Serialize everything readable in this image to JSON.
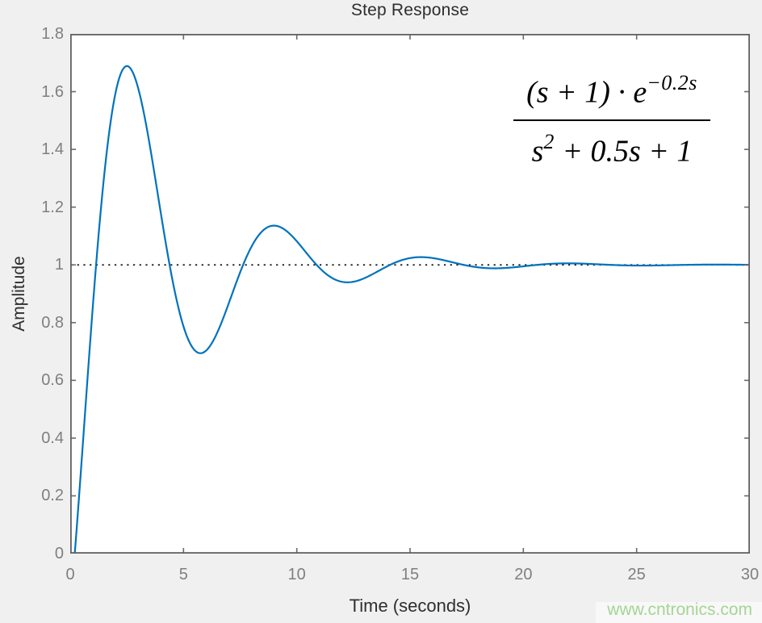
{
  "title": "Step Response",
  "watermark_text": "www.cntronics.com",
  "formula": {
    "num_main": "(s + 1) · e",
    "num_sup": "−0.2s",
    "den_base": "s",
    "den_sup": "2",
    "den_rest": " + 0.5s + 1"
  },
  "colors": {
    "curve": "#0072BD",
    "figure_background": "#f0f0f0",
    "plot_background": "#ffffff",
    "axis_box": "#616161",
    "tick_mark": "#6a6a6a",
    "tick_label": "#7f7f7f",
    "text": "#2e2e2e",
    "reference_line": "#111111",
    "watermark": "#a5d595"
  },
  "chart_data": {
    "type": "line",
    "title": "Step Response",
    "xlabel": "Time (seconds)",
    "ylabel": "Amplitude",
    "xlim": [
      0,
      30
    ],
    "ylim": [
      0,
      1.8
    ],
    "xticks": [
      0,
      5,
      10,
      15,
      20,
      25,
      30
    ],
    "xtick_labels": [
      "0",
      "5",
      "10",
      "15",
      "20",
      "25",
      "30"
    ],
    "yticks": [
      0,
      0.2,
      0.4,
      0.6,
      0.8,
      1,
      1.2,
      1.4,
      1.6,
      1.8
    ],
    "ytick_labels": [
      "0",
      "0.2",
      "0.4",
      "0.6",
      "0.8",
      "1",
      "1.2",
      "1.4",
      "1.6",
      "1.8"
    ],
    "grid": false,
    "box": true,
    "tick_direction": "in",
    "annotation": "(s + 1) · e^(−0.2s) / (s^2 + 0.5s + 1)",
    "reference_line": {
      "y": 1,
      "style": "dotted",
      "color": "#111111"
    },
    "series": [
      {
        "name": "step response of G(s) = (s+1)·e^(−0.2s)/(s²+0.5s+1)",
        "color": "#0072BD",
        "line_width": 2.2,
        "model": {
          "description": "y(t) = 0 for t < delay; y(t) = 1 + exp(−sigma·τ)·(cos_coef·cos(omega_d·τ) + sin_coef·sin(omega_d·τ)), τ = t − delay",
          "delay": 0.2,
          "sigma": 0.25,
          "omega_d": 0.9682458,
          "cos_coef": -1,
          "sin_coef": 0.7745967,
          "t_start": 0,
          "t_end": 30,
          "t_step": 0.05
        },
        "keypoints": [
          {
            "t": 0,
            "y": 0
          },
          {
            "t": 0.2,
            "y": 0,
            "note": "transport delay ends"
          },
          {
            "t": 1.14,
            "y": 1.0,
            "note": "first crossing of final value"
          },
          {
            "t": 2.46,
            "y": 1.69,
            "note": "peak overshoot"
          },
          {
            "t": 5.7,
            "y": 0.69,
            "note": "first undershoot"
          },
          {
            "t": 8.9,
            "y": 1.14,
            "note": "second overshoot"
          },
          {
            "t": 12.2,
            "y": 0.94,
            "note": "second undershoot"
          },
          {
            "t": 15.3,
            "y": 1.02,
            "note": "third overshoot"
          },
          {
            "t": 18.5,
            "y": 0.99,
            "note": "third undershoot"
          },
          {
            "t": 30,
            "y": 1.0,
            "note": "steady state / final value"
          }
        ]
      }
    ]
  }
}
